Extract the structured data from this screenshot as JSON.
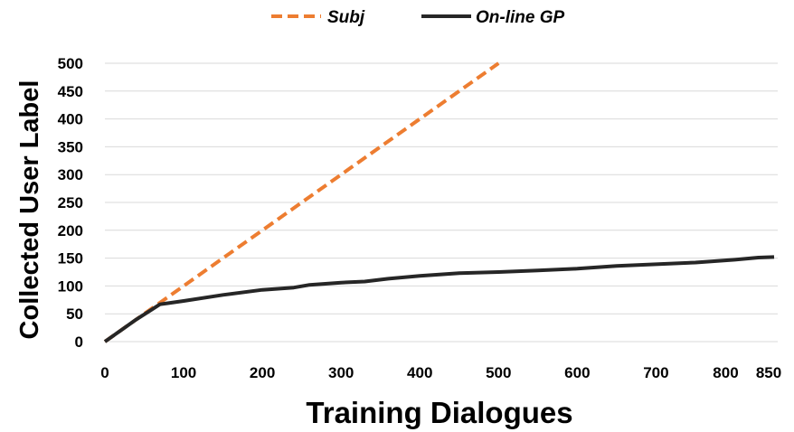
{
  "chart_data": {
    "type": "line",
    "xlabel": "Training Dialogues",
    "ylabel": "Collected User Label",
    "xlim": [
      0,
      850
    ],
    "ylim": [
      0,
      500
    ],
    "x_ticks": [
      0,
      100,
      200,
      300,
      400,
      500,
      600,
      700,
      800,
      850
    ],
    "y_ticks": [
      0,
      50,
      100,
      150,
      200,
      250,
      300,
      350,
      400,
      450,
      500
    ],
    "grid": "horizontal",
    "legend_position": "top",
    "series": [
      {
        "name": "Subj",
        "color": "#ED7D31",
        "style": "dashed",
        "x": [
          0,
          500
        ],
        "y": [
          0,
          500
        ]
      },
      {
        "name": "On-line GP",
        "color": "#262626",
        "style": "solid",
        "x": [
          0,
          20,
          40,
          60,
          70,
          80,
          100,
          150,
          200,
          240,
          260,
          300,
          330,
          360,
          400,
          450,
          500,
          550,
          600,
          650,
          700,
          750,
          800,
          830,
          850
        ],
        "y": [
          0,
          20,
          40,
          58,
          67,
          69,
          73,
          84,
          93,
          97,
          102,
          106,
          108,
          113,
          118,
          123,
          125,
          128,
          131,
          136,
          139,
          142,
          147,
          151,
          152
        ]
      }
    ]
  }
}
